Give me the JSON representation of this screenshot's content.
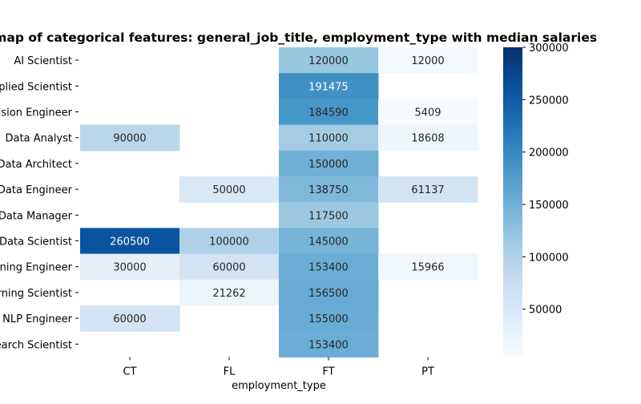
{
  "chart_data": {
    "type": "heatmap",
    "title": "Heatmap of categorical features: general_job_title, employment_type with median salaries",
    "xlabel": "employment_type",
    "ylabel": "",
    "x_categories": [
      "CT",
      "FL",
      "FT",
      "PT"
    ],
    "y_categories": [
      "AI Scientist",
      "Applied Scientist",
      "Computer Vision Engineer",
      "Data Analyst",
      "Data Architect",
      "Data Engineer",
      "Data Manager",
      "Data Scientist",
      "Machine Learning Engineer",
      "Machine Learning Scientist",
      "NLP Engineer",
      "Research Scientist"
    ],
    "values": [
      [
        null,
        null,
        120000,
        12000
      ],
      [
        null,
        null,
        191475,
        null
      ],
      [
        null,
        null,
        184590,
        5409
      ],
      [
        90000,
        null,
        110000,
        18608
      ],
      [
        null,
        null,
        150000,
        null
      ],
      [
        null,
        50000,
        138750,
        61137
      ],
      [
        null,
        null,
        117500,
        null
      ],
      [
        260500,
        100000,
        145000,
        null
      ],
      [
        30000,
        60000,
        153400,
        15966
      ],
      [
        null,
        21262,
        156500,
        null
      ],
      [
        60000,
        null,
        155000,
        null
      ],
      [
        null,
        null,
        153400,
        null
      ]
    ],
    "colormap": "Blues",
    "vmin": 5409,
    "vmax": 300000,
    "colorbar_ticks": [
      50000,
      100000,
      150000,
      200000,
      250000,
      300000
    ],
    "colorbar_tick_labels": [
      "50000",
      "100000",
      "150000",
      "200000",
      "250000",
      "300000"
    ],
    "annotation_colors": {
      "dark_text": "#262626",
      "light_text": "#ffffff"
    }
  }
}
